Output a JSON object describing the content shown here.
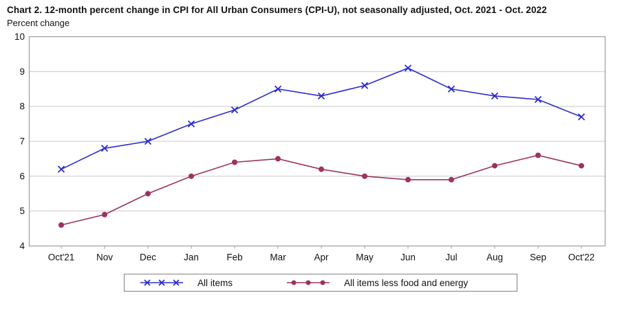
{
  "chart": {
    "title": "Chart 2. 12-month percent change in CPI for All Urban Consumers (CPI-U), not seasonally adjusted, Oct. 2021 - Oct. 2022",
    "ylabel": "Percent change"
  },
  "chart_data": {
    "type": "line",
    "title": "Chart 2. 12-month percent change in CPI for All Urban Consumers (CPI-U), not seasonally adjusted, Oct. 2021 - Oct. 2022",
    "xlabel": "",
    "ylabel": "Percent change",
    "categories": [
      "Oct'21",
      "Nov",
      "Dec",
      "Jan",
      "Feb",
      "Mar",
      "Apr",
      "May",
      "Jun",
      "Jul",
      "Aug",
      "Sep",
      "Oct'22"
    ],
    "series": [
      {
        "name": "All items",
        "marker": "x",
        "color": "#2B2BCE",
        "values": [
          6.2,
          6.8,
          7.0,
          7.5,
          7.9,
          8.5,
          8.3,
          8.6,
          9.1,
          8.5,
          8.3,
          8.2,
          7.7
        ]
      },
      {
        "name": "All items less food and energy",
        "marker": "circle",
        "color": "#9D3160",
        "values": [
          4.6,
          4.9,
          5.5,
          6.0,
          6.4,
          6.5,
          6.2,
          6.0,
          5.9,
          5.9,
          6.3,
          6.6,
          6.3
        ]
      }
    ],
    "ylim": [
      4,
      10
    ],
    "yticks": [
      4,
      5,
      6,
      7,
      8,
      9,
      10
    ],
    "grid": true,
    "grid_color": "#C9C9C9",
    "plot_border_color": "#9C9C9C",
    "legend_position": "bottom"
  }
}
